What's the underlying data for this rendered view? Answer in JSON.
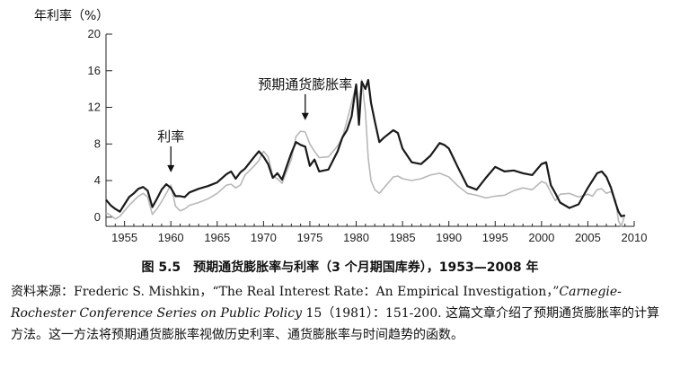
{
  "chart_data": {
    "type": "line",
    "ylabel": "年利率（%）",
    "ylim": [
      -1,
      20
    ],
    "xlim": [
      1953,
      2010
    ],
    "yticks": [
      0,
      4,
      8,
      12,
      16,
      20
    ],
    "xticks": [
      1955,
      1960,
      1965,
      1970,
      1975,
      1980,
      1985,
      1990,
      1995,
      2000,
      2005,
      2010
    ],
    "grid": false,
    "annotations": [
      {
        "text": "利率",
        "x": 1960,
        "y": 4.8
      },
      {
        "text": "预期通货膨胀率",
        "x": 1974.5,
        "y": 10.5
      }
    ],
    "series": [
      {
        "name": "利率",
        "color": "#1a1a1a",
        "x": [
          1953.0,
          1953.5,
          1954.0,
          1954.5,
          1955.0,
          1955.5,
          1956.0,
          1956.5,
          1957.0,
          1957.5,
          1958.0,
          1958.5,
          1959.0,
          1959.5,
          1960.0,
          1960.5,
          1961.0,
          1961.5,
          1962.0,
          1963.0,
          1964.0,
          1965.0,
          1966.0,
          1966.5,
          1967.0,
          1967.5,
          1968.0,
          1969.0,
          1969.5,
          1970.0,
          1970.5,
          1971.0,
          1971.5,
          1972.0,
          1973.0,
          1973.5,
          1974.0,
          1974.5,
          1975.0,
          1975.5,
          1976.0,
          1977.0,
          1978.0,
          1978.5,
          1979.0,
          1979.5,
          1980.0,
          1980.3,
          1980.6,
          1981.0,
          1981.3,
          1981.6,
          1982.0,
          1982.5,
          1983.0,
          1984.0,
          1984.5,
          1985.0,
          1986.0,
          1987.0,
          1988.0,
          1989.0,
          1989.5,
          1990.0,
          1991.0,
          1992.0,
          1993.0,
          1994.0,
          1995.0,
          1996.0,
          1997.0,
          1998.0,
          1999.0,
          2000.0,
          2000.5,
          2001.0,
          2001.5,
          2002.0,
          2003.0,
          2004.0,
          2005.0,
          2005.5,
          2006.0,
          2006.5,
          2007.0,
          2007.5,
          2008.0,
          2008.3,
          2008.6,
          2009.0
        ],
        "values": [
          1.9,
          1.3,
          0.9,
          0.6,
          1.4,
          2.2,
          2.6,
          3.1,
          3.3,
          2.9,
          1.1,
          2.0,
          3.0,
          3.6,
          3.2,
          2.3,
          2.3,
          2.2,
          2.7,
          3.1,
          3.4,
          3.8,
          4.7,
          5.0,
          4.2,
          4.9,
          5.3,
          6.6,
          7.2,
          6.6,
          5.8,
          4.3,
          4.8,
          4.1,
          7.0,
          8.2,
          7.9,
          7.7,
          5.6,
          6.3,
          5.0,
          5.2,
          7.2,
          8.7,
          9.5,
          11.0,
          14.5,
          10.1,
          14.8,
          14.0,
          15.0,
          12.5,
          10.5,
          8.2,
          8.7,
          9.5,
          9.2,
          7.5,
          6.0,
          5.8,
          6.7,
          8.1,
          7.9,
          7.5,
          5.4,
          3.4,
          3.0,
          4.3,
          5.5,
          5.0,
          5.1,
          4.8,
          4.6,
          5.8,
          6.0,
          3.5,
          2.6,
          1.6,
          1.0,
          1.4,
          3.2,
          4.0,
          4.8,
          5.0,
          4.4,
          3.2,
          1.5,
          0.6,
          0.1,
          0.2
        ]
      },
      {
        "name": "预期通货膨胀率",
        "color": "#b8b8b8",
        "x": [
          1953.0,
          1953.5,
          1954.0,
          1954.5,
          1955.0,
          1955.5,
          1956.0,
          1956.5,
          1957.0,
          1957.5,
          1958.0,
          1958.5,
          1959.0,
          1959.5,
          1960.0,
          1960.5,
          1961.0,
          1961.5,
          1962.0,
          1963.0,
          1964.0,
          1965.0,
          1966.0,
          1966.5,
          1967.0,
          1967.5,
          1968.0,
          1969.0,
          1969.5,
          1970.0,
          1970.5,
          1971.0,
          1971.5,
          1972.0,
          1973.0,
          1973.5,
          1974.0,
          1974.5,
          1975.0,
          1975.5,
          1976.0,
          1977.0,
          1978.0,
          1978.5,
          1979.0,
          1979.5,
          1980.0,
          1980.3,
          1980.6,
          1981.0,
          1981.3,
          1981.6,
          1982.0,
          1982.5,
          1983.0,
          1984.0,
          1984.5,
          1985.0,
          1986.0,
          1987.0,
          1988.0,
          1989.0,
          1989.5,
          1990.0,
          1991.0,
          1992.0,
          1993.0,
          1994.0,
          1995.0,
          1996.0,
          1997.0,
          1998.0,
          1999.0,
          2000.0,
          2000.5,
          2001.0,
          2001.5,
          2002.0,
          2003.0,
          2004.0,
          2005.0,
          2005.5,
          2006.0,
          2006.5,
          2007.0,
          2007.5,
          2008.0,
          2008.3,
          2008.6,
          2009.0
        ],
        "values": [
          0.5,
          0.2,
          -0.2,
          0.1,
          0.7,
          1.3,
          1.8,
          2.3,
          2.6,
          2.2,
          0.3,
          0.9,
          1.7,
          2.6,
          3.5,
          1.2,
          0.7,
          0.9,
          1.3,
          1.6,
          2.0,
          2.6,
          3.5,
          3.6,
          3.2,
          3.5,
          4.6,
          5.6,
          6.2,
          7.2,
          6.6,
          4.5,
          4.2,
          3.7,
          6.3,
          8.8,
          9.4,
          9.3,
          8.0,
          7.2,
          6.5,
          6.6,
          7.8,
          8.7,
          10.5,
          12.5,
          14.5,
          12.0,
          15.0,
          11.5,
          6.5,
          4.0,
          3.0,
          2.6,
          3.2,
          4.4,
          4.5,
          4.2,
          4.0,
          4.2,
          4.6,
          4.8,
          4.6,
          4.4,
          3.4,
          2.6,
          2.4,
          2.1,
          2.3,
          2.4,
          2.9,
          3.2,
          3.0,
          3.9,
          3.7,
          2.7,
          1.8,
          2.5,
          2.6,
          2.2,
          2.5,
          2.3,
          3.0,
          3.1,
          2.6,
          2.8,
          1.8,
          -0.4,
          -1.0,
          0.3
        ]
      }
    ]
  },
  "caption": "图 5.5　预期通货膨胀率与利率（3 个月期国库券），1953—2008 年",
  "source": {
    "label": "资料来源：",
    "author": "Frederic S. Mishkin，",
    "article": "“The Real Interest Rate：An Empirical Investigation，”",
    "journal": "Carnegie- Rochester Conference Series on Public Policy",
    "details": " 15（1981）：151-200. ",
    "description": "这篇文章介绍了预期通货膨胀率的计算方法。这一方法将预期通货膨胀率视做历史利率、通货膨胀率与时间趋势的函数。"
  }
}
